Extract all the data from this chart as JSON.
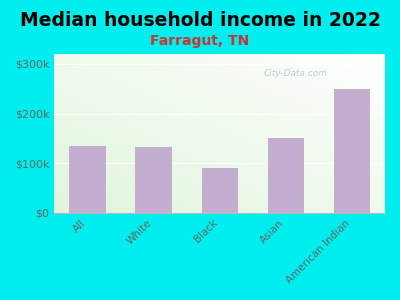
{
  "title": "Median household income in 2022",
  "subtitle": "Farragut, TN",
  "categories": [
    "All",
    "White",
    "Black",
    "Asian",
    "American Indian"
  ],
  "values": [
    135000,
    133000,
    90000,
    150000,
    250000
  ],
  "bar_color": "#c4aed0",
  "background_color": "#00eeee",
  "title_fontsize": 13.5,
  "subtitle_fontsize": 10,
  "subtitle_color": "#cc3333",
  "ytick_labels": [
    "$0",
    "$100k",
    "$200k",
    "$300k"
  ],
  "ytick_values": [
    0,
    100000,
    200000,
    300000
  ],
  "ylim": [
    0,
    320000
  ],
  "watermark": "City-Data.com",
  "watermark_color": "#b0c8d0"
}
